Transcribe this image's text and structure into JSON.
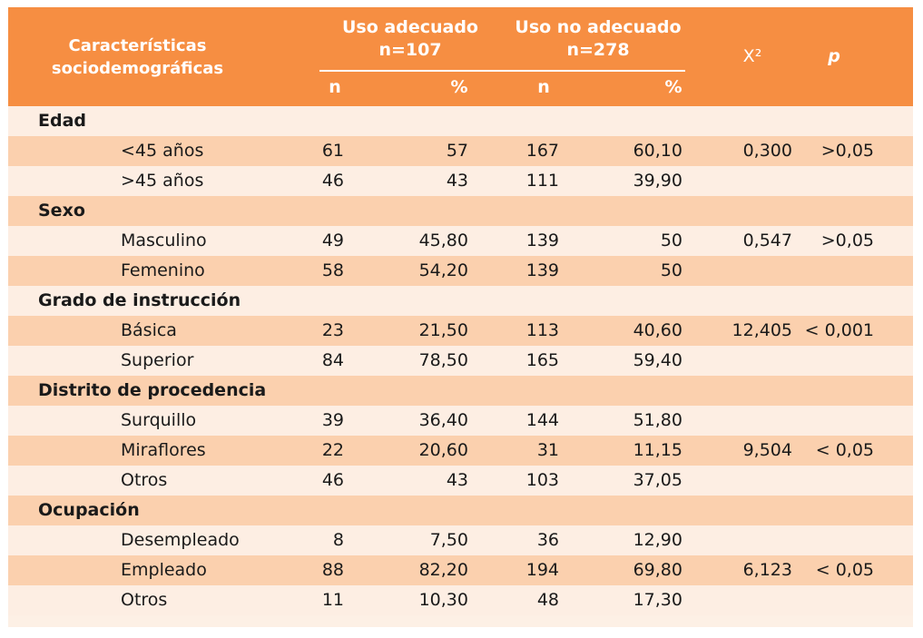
{
  "header": {
    "characteristics": "Características\nsociodemográficas",
    "group1": "Uso adecuado\nn=107",
    "group2": "Uso no adecuado\nn=278",
    "chi": "X²",
    "p": "p",
    "n_label": "n",
    "pct_label": "%"
  },
  "rows": [
    {
      "type": "cat",
      "label": "Edad"
    },
    {
      "type": "sub",
      "label": "<45 años",
      "n1": "61",
      "p1": "57",
      "n2": "167",
      "p2": "60,10",
      "chi": "0,300",
      "p": ">0,05"
    },
    {
      "type": "sub",
      "label": ">45 años",
      "n1": "46",
      "p1": "43",
      "n2": "111",
      "p2": "39,90",
      "chi": "",
      "p": ""
    },
    {
      "type": "cat",
      "label": "Sexo"
    },
    {
      "type": "sub",
      "label": "Masculino",
      "n1": "49",
      "p1": "45,80",
      "n2": "139",
      "p2": "50",
      "chi": "0,547",
      "p": ">0,05"
    },
    {
      "type": "sub",
      "label": "Femenino",
      "n1": "58",
      "p1": "54,20",
      "n2": "139",
      "p2": "50",
      "chi": "",
      "p": ""
    },
    {
      "type": "cat",
      "label": "Grado de instrucción"
    },
    {
      "type": "sub",
      "label": "Básica",
      "n1": "23",
      "p1": "21,50",
      "n2": "113",
      "p2": "40,60",
      "chi": "12,405",
      "p": "< 0,001"
    },
    {
      "type": "sub",
      "label": "Superior",
      "n1": "84",
      "p1": "78,50",
      "n2": "165",
      "p2": "59,40",
      "chi": "",
      "p": ""
    },
    {
      "type": "cat",
      "label": "Distrito de procedencia"
    },
    {
      "type": "sub",
      "label": "Surquillo",
      "n1": "39",
      "p1": "36,40",
      "n2": "144",
      "p2": "51,80",
      "chi": "",
      "p": ""
    },
    {
      "type": "sub",
      "label": "Miraflores",
      "n1": "22",
      "p1": "20,60",
      "n2": "31",
      "p2": "11,15",
      "chi": "9,504",
      "p": "< 0,05"
    },
    {
      "type": "sub",
      "label": "Otros",
      "n1": "46",
      "p1": "43",
      "n2": "103",
      "p2": "37,05",
      "chi": "",
      "p": ""
    },
    {
      "type": "cat",
      "label": "Ocupación"
    },
    {
      "type": "sub",
      "label": "Desempleado",
      "n1": "8",
      "p1": "7,50",
      "n2": "36",
      "p2": "12,90",
      "chi": "",
      "p": ""
    },
    {
      "type": "sub",
      "label": "Empleado",
      "n1": "88",
      "p1": "82,20",
      "n2": "194",
      "p2": "69,80",
      "chi": "6,123",
      "p": "< 0,05"
    },
    {
      "type": "sub",
      "label": "Otros",
      "n1": "11",
      "p1": "10,30",
      "n2": "48",
      "p2": "17,30",
      "chi": "",
      "p": ""
    }
  ],
  "colors": {
    "header_bg": "#f68e42",
    "row_light": "#fdeee3",
    "row_dark": "#fbd0ae",
    "header_text": "#ffffff"
  }
}
